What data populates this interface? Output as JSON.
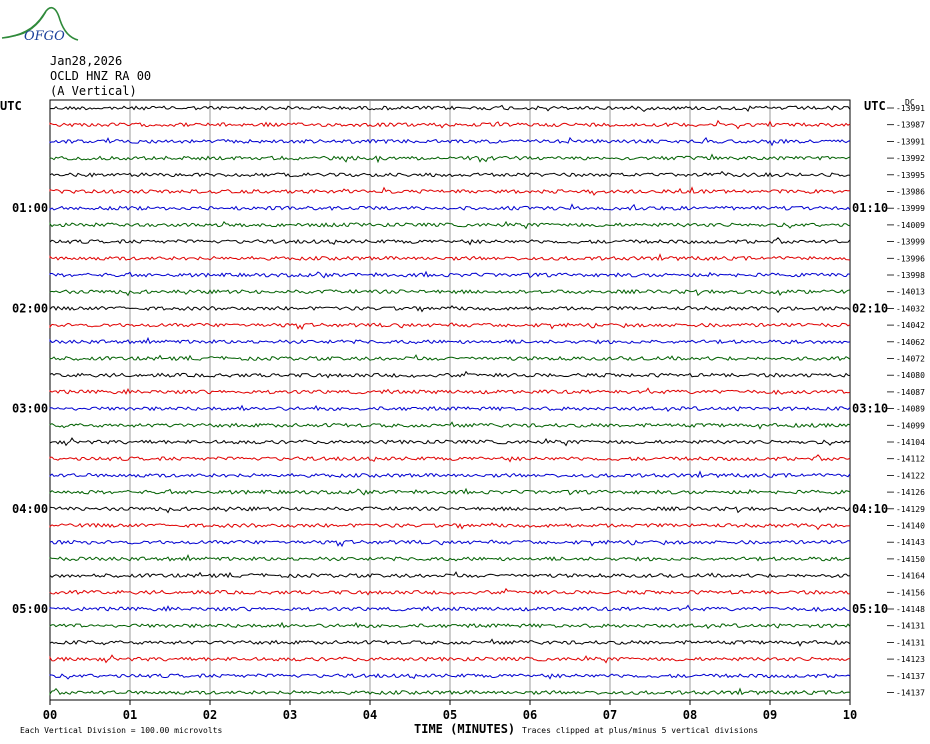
{
  "logo": {
    "text": "OFGO",
    "color": "#1a3f9a",
    "accent": "#2f8a3a"
  },
  "header": {
    "date": "Jan28,2026",
    "station": "OCLD HNZ RA 00",
    "component": "(A Vertical)"
  },
  "chart_data": {
    "type": "line",
    "plot_kind": "helicorder",
    "left_label": "UTC",
    "right_label": "UTC",
    "right_unit": "DC",
    "x_axis_title": "TIME (MINUTES)",
    "x_ticks": [
      "00",
      "01",
      "02",
      "03",
      "04",
      "05",
      "06",
      "07",
      "08",
      "09",
      "10"
    ],
    "xlim": [
      0,
      10
    ],
    "left_hour_labels": [
      {
        "row": 6,
        "text": "01:00"
      },
      {
        "row": 12,
        "text": "02:00"
      },
      {
        "row": 18,
        "text": "03:00"
      },
      {
        "row": 24,
        "text": "04:00"
      },
      {
        "row": 30,
        "text": "05:00"
      }
    ],
    "right_hour_labels": [
      {
        "row": 6,
        "text": "01:10"
      },
      {
        "row": 12,
        "text": "02:10"
      },
      {
        "row": 18,
        "text": "03:10"
      },
      {
        "row": 24,
        "text": "04:10"
      },
      {
        "row": 30,
        "text": "05:10"
      }
    ],
    "trace_colors": [
      "#000000",
      "#e00000",
      "#0000d0",
      "#006000"
    ],
    "dc_offsets": [
      -13991,
      -13987,
      -13991,
      -13992,
      -13995,
      -13986,
      -13999,
      -14009,
      -13999,
      -13996,
      -13998,
      -14013,
      -14032,
      -14042,
      -14062,
      -14072,
      -14080,
      -14087,
      -14089,
      -14099,
      -14104,
      -14112,
      -14122,
      -14126,
      -14129,
      -14140,
      -14143,
      -14150,
      -14164,
      -14156,
      -14148,
      -14131,
      -14131,
      -14123,
      -14137,
      -14137
    ],
    "footer_left": "Each Vertical Division =  100.00 microvolts",
    "footer_right": "Traces clipped at plus/minus 5 vertical divisions",
    "grid": true
  }
}
